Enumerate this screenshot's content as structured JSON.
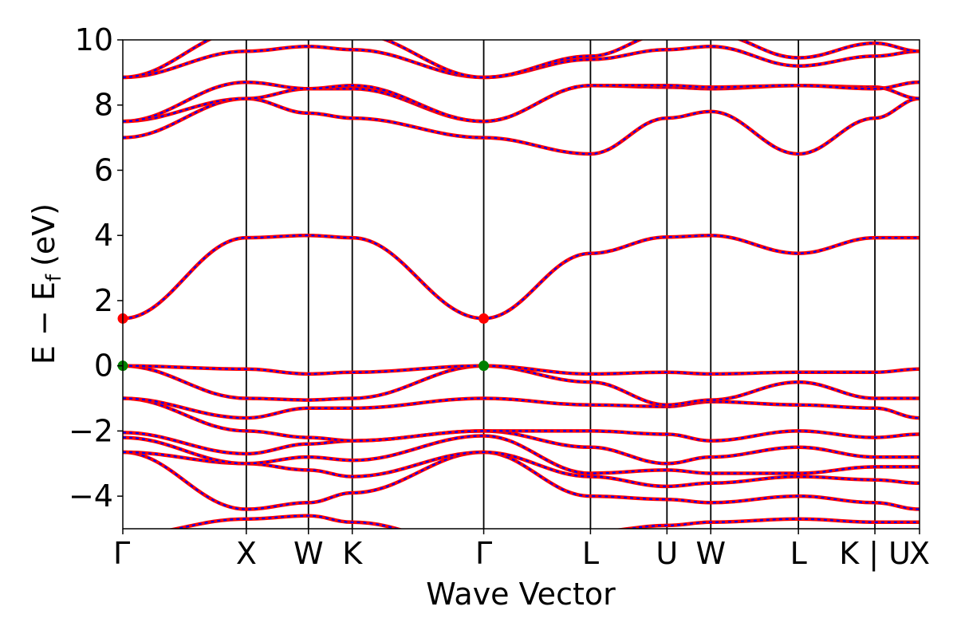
{
  "chart_data": {
    "type": "line",
    "xlabel": "Wave Vector",
    "ylabel_main": "E − E",
    "ylabel_sub": "f",
    "ylabel_unit": "(eV)",
    "ylim": [
      -5,
      10
    ],
    "yticks": [
      -4,
      -2,
      0,
      2,
      4,
      6,
      8,
      10
    ],
    "ytick_labels": [
      "−4",
      "−2",
      "0",
      "2",
      "4",
      "6",
      "8",
      "10"
    ],
    "xlim": [
      0,
      100
    ],
    "kpoints": [
      {
        "label": "Γ",
        "x": 0
      },
      {
        "label": "X",
        "x": 15.5
      },
      {
        "label": "W",
        "x": 23.3
      },
      {
        "label": "K",
        "x": 28.8
      },
      {
        "label": "Γ",
        "x": 45.3
      },
      {
        "label": "L",
        "x": 58.7
      },
      {
        "label": "U",
        "x": 68.3
      },
      {
        "label": "W",
        "x": 73.8
      },
      {
        "label": "L",
        "x": 84.8
      },
      {
        "label": "K | U",
        "x": 94.4
      },
      {
        "label": "X",
        "x": 100
      }
    ],
    "colors": {
      "band_primary": "#ff0000",
      "band_secondary": "#0000ff",
      "vbm_marker": "#008000",
      "cbm_marker": "#ff0000"
    },
    "markers": [
      {
        "kind": "cbm",
        "x": 0,
        "y": 1.45,
        "color": "#ff0000"
      },
      {
        "kind": "cbm",
        "x": 45.3,
        "y": 1.45,
        "color": "#ff0000"
      },
      {
        "kind": "vbm",
        "x": 0,
        "y": 0.0,
        "color": "#008000"
      },
      {
        "kind": "vbm",
        "x": 45.3,
        "y": 0.0,
        "color": "#008000"
      }
    ],
    "bands": [
      {
        "name": "b1",
        "values": [
          -5.2,
          -4.7,
          -4.6,
          -4.8,
          -5.6,
          -5.1,
          -4.9,
          -4.8,
          -4.7,
          -4.8,
          -4.8
        ]
      },
      {
        "name": "b2",
        "values": [
          -2.65,
          -4.4,
          -4.2,
          -3.9,
          -2.65,
          -4.0,
          -4.1,
          -4.2,
          -4.0,
          -4.2,
          -4.4
        ]
      },
      {
        "name": "b3",
        "values": [
          -2.65,
          -3.0,
          -3.2,
          -3.4,
          -2.65,
          -3.4,
          -3.7,
          -3.6,
          -3.4,
          -3.5,
          -3.6
        ]
      },
      {
        "name": "b4",
        "values": [
          -2.2,
          -3.0,
          -2.8,
          -2.9,
          -2.15,
          -3.3,
          -3.2,
          -3.3,
          -3.3,
          -3.1,
          -3.1
        ]
      },
      {
        "name": "b5",
        "values": [
          -2.05,
          -2.7,
          -2.4,
          -2.3,
          -2.0,
          -2.5,
          -3.0,
          -2.8,
          -2.5,
          -2.8,
          -2.8
        ]
      },
      {
        "name": "b6",
        "values": [
          -1.0,
          -2.0,
          -2.2,
          -2.3,
          -2.0,
          -2.0,
          -2.1,
          -2.3,
          -2.0,
          -2.2,
          -2.1
        ]
      },
      {
        "name": "b7",
        "values": [
          -1.0,
          -1.6,
          -1.3,
          -1.3,
          -1.0,
          -1.2,
          -1.25,
          -1.1,
          -1.2,
          -1.3,
          -1.6
        ]
      },
      {
        "name": "b8",
        "values": [
          0.0,
          -1.0,
          -1.05,
          -1.0,
          0.0,
          -0.5,
          -1.2,
          -1.05,
          -0.5,
          -1.0,
          -1.0
        ]
      },
      {
        "name": "b9",
        "values": [
          0.0,
          -0.1,
          -0.25,
          -0.2,
          0.0,
          -0.25,
          -0.2,
          -0.25,
          -0.2,
          -0.2,
          -0.1
        ]
      },
      {
        "name": "c1",
        "values": [
          1.45,
          3.93,
          4.0,
          3.93,
          1.45,
          3.45,
          3.95,
          4.0,
          3.45,
          3.93,
          3.93
        ]
      },
      {
        "name": "c2",
        "values": [
          7.0,
          8.2,
          7.75,
          7.6,
          7.0,
          6.5,
          7.6,
          7.8,
          6.5,
          7.6,
          8.2
        ]
      },
      {
        "name": "c3",
        "values": [
          7.5,
          8.2,
          8.5,
          8.5,
          7.5,
          8.6,
          8.55,
          8.5,
          8.6,
          8.55,
          8.2
        ]
      },
      {
        "name": "c4",
        "values": [
          7.5,
          8.7,
          8.5,
          8.6,
          7.5,
          8.6,
          8.6,
          8.55,
          8.6,
          8.5,
          8.7
        ]
      },
      {
        "name": "c5",
        "values": [
          8.85,
          9.65,
          9.8,
          9.7,
          8.85,
          9.4,
          9.7,
          9.8,
          9.2,
          9.5,
          9.65
        ]
      },
      {
        "name": "c6",
        "values": [
          8.85,
          10.3,
          10.3,
          10.2,
          8.85,
          9.5,
          10.2,
          10.2,
          9.45,
          9.9,
          9.65
        ]
      }
    ]
  }
}
